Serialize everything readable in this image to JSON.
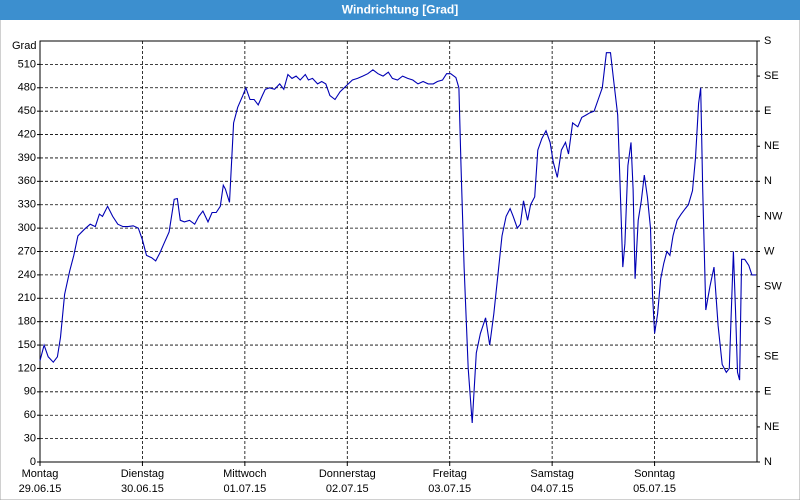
{
  "chart_data": {
    "type": "line",
    "title": "Windrichtung [Grad]",
    "y_label": "Grad",
    "xlim": [
      0,
      7
    ],
    "xticks": [
      {
        "value": 0,
        "label": "Montag",
        "date": "29.06.15"
      },
      {
        "value": 1,
        "label": "Dienstag",
        "date": "30.06.15"
      },
      {
        "value": 2,
        "label": "Mittwoch",
        "date": "01.07.15"
      },
      {
        "value": 3,
        "label": "Donnerstag",
        "date": "02.07.15"
      },
      {
        "value": 4,
        "label": "Freitag",
        "date": "03.07.15"
      },
      {
        "value": 5,
        "label": "Samstag",
        "date": "04.07.15"
      },
      {
        "value": 6,
        "label": "Sonntag",
        "date": "05.07.15"
      }
    ],
    "ylim": [
      0,
      540
    ],
    "yticks": [
      0,
      30,
      60,
      90,
      120,
      150,
      180,
      210,
      240,
      270,
      300,
      330,
      360,
      390,
      420,
      450,
      480,
      510
    ],
    "y2lim": [
      0,
      540
    ],
    "y2ticks": [
      {
        "value": 0,
        "label": "N"
      },
      {
        "value": 45,
        "label": "NE"
      },
      {
        "value": 90,
        "label": "E"
      },
      {
        "value": 135,
        "label": "SE"
      },
      {
        "value": 180,
        "label": "S"
      },
      {
        "value": 225,
        "label": "SW"
      },
      {
        "value": 270,
        "label": "W"
      },
      {
        "value": 315,
        "label": "NW"
      },
      {
        "value": 360,
        "label": "N"
      },
      {
        "value": 405,
        "label": "NE"
      },
      {
        "value": 450,
        "label": "E"
      },
      {
        "value": 495,
        "label": "SE"
      },
      {
        "value": 540,
        "label": "S"
      }
    ],
    "grid": true,
    "color": "#0000b4",
    "x": [
      0,
      0.04,
      0.08,
      0.13,
      0.17,
      0.2,
      0.24,
      0.29,
      0.33,
      0.37,
      0.43,
      0.49,
      0.54,
      0.58,
      0.61,
      0.66,
      0.71,
      0.76,
      0.81,
      0.86,
      0.91,
      0.96,
      1.0,
      1.04,
      1.09,
      1.13,
      1.17,
      1.21,
      1.26,
      1.31,
      1.34,
      1.37,
      1.41,
      1.46,
      1.51,
      1.55,
      1.59,
      1.64,
      1.68,
      1.72,
      1.76,
      1.79,
      1.81,
      1.85,
      1.89,
      1.93,
      1.98,
      2.01,
      2.05,
      2.09,
      2.13,
      2.17,
      2.2,
      2.24,
      2.29,
      2.34,
      2.38,
      2.42,
      2.46,
      2.5,
      2.54,
      2.59,
      2.62,
      2.66,
      2.71,
      2.75,
      2.79,
      2.83,
      2.88,
      2.93,
      2.97,
      3.01,
      3.05,
      3.1,
      3.15,
      3.2,
      3.25,
      3.3,
      3.35,
      3.4,
      3.44,
      3.49,
      3.54,
      3.59,
      3.64,
      3.69,
      3.74,
      3.79,
      3.84,
      3.88,
      3.93,
      3.97,
      4.01,
      4.06,
      4.09,
      4.11,
      4.14,
      4.18,
      4.22,
      4.26,
      4.3,
      4.35,
      4.39,
      4.43,
      4.47,
      4.51,
      4.55,
      4.59,
      4.62,
      4.66,
      4.69,
      4.72,
      4.76,
      4.79,
      4.83,
      4.86,
      4.9,
      4.94,
      4.98,
      5.01,
      5.05,
      5.09,
      5.13,
      5.16,
      5.2,
      5.25,
      5.29,
      5.33,
      5.37,
      5.41,
      5.45,
      5.49,
      5.53,
      5.57,
      5.6,
      5.64,
      5.66,
      5.69,
      5.71,
      5.74,
      5.77,
      5.79,
      5.81,
      5.84,
      5.87,
      5.9,
      5.93,
      5.96,
      5.98,
      6.0,
      6.03,
      6.06,
      6.09,
      6.12,
      6.15,
      6.18,
      6.22,
      6.26,
      6.3,
      6.33,
      6.37,
      6.4,
      6.43,
      6.45,
      6.47,
      6.5,
      6.54,
      6.58,
      6.62,
      6.66,
      6.7,
      6.73,
      6.77,
      6.79,
      6.81,
      6.83,
      6.85,
      6.88,
      6.92,
      6.95,
      6.99
    ],
    "values": [
      130,
      150,
      135,
      128,
      135,
      160,
      215,
      245,
      265,
      290,
      298,
      305,
      302,
      318,
      315,
      328,
      315,
      305,
      302,
      302,
      303,
      300,
      285,
      265,
      262,
      258,
      268,
      280,
      295,
      337,
      338,
      310,
      308,
      310,
      305,
      315,
      322,
      308,
      320,
      320,
      328,
      355,
      350,
      333,
      435,
      455,
      470,
      480,
      465,
      465,
      458,
      470,
      478,
      480,
      478,
      485,
      478,
      497,
      492,
      495,
      490,
      497,
      490,
      492,
      485,
      488,
      485,
      470,
      465,
      475,
      480,
      485,
      490,
      492,
      495,
      498,
      503,
      498,
      495,
      500,
      492,
      490,
      495,
      492,
      490,
      485,
      488,
      485,
      485,
      488,
      490,
      498,
      498,
      493,
      480,
      380,
      250,
      120,
      50,
      140,
      165,
      185,
      150,
      190,
      240,
      290,
      315,
      325,
      315,
      300,
      305,
      335,
      310,
      330,
      340,
      400,
      415,
      425,
      410,
      385,
      365,
      400,
      410,
      395,
      435,
      430,
      442,
      445,
      448,
      450,
      465,
      480,
      525,
      525,
      490,
      445,
      370,
      250,
      280,
      380,
      410,
      350,
      235,
      310,
      335,
      368,
      340,
      300,
      215,
      165,
      190,
      235,
      255,
      270,
      265,
      290,
      310,
      318,
      325,
      330,
      348,
      390,
      460,
      480,
      350,
      195,
      225,
      250,
      175,
      125,
      115,
      120,
      270,
      195,
      115,
      105,
      260,
      260,
      252,
      240,
      240
    ]
  }
}
